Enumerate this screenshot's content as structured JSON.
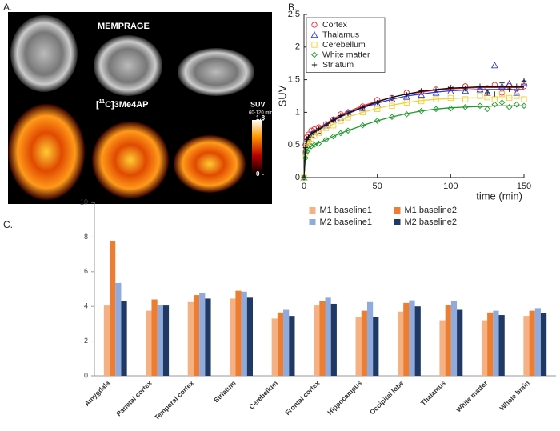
{
  "panel_labels": [
    "A.",
    "B.",
    "C."
  ],
  "image_panel": {
    "mri_label": "MEMPRAGE",
    "pet_label": [
      "[",
      "11",
      "C]3Me4AP"
    ],
    "colorbar": {
      "label": "SUV",
      "sublabel": "60-120 min",
      "lim": [
        0,
        1.8
      ],
      "ticks": [
        0,
        1.8
      ]
    }
  },
  "chart_data": [
    {
      "type": "scatter",
      "xlabel": "time (min)",
      "ylabel": "SUV",
      "x": [
        0,
        1,
        2,
        3,
        5,
        7,
        10,
        15,
        20,
        25,
        30,
        40,
        50,
        60,
        70,
        80,
        90,
        100,
        110,
        120,
        125,
        130,
        135,
        140,
        145,
        150
      ],
      "xlim": [
        0,
        150
      ],
      "xticks": [
        0,
        50,
        100,
        150
      ],
      "ylim": [
        0,
        2.5
      ],
      "yticks": [
        0,
        0.5,
        1,
        1.5,
        2,
        2.5
      ],
      "legend": "upper left",
      "series": [
        {
          "name": "Cortex",
          "color": "#e8272c",
          "marker": "circle",
          "values": [
            0,
            0.5,
            0.62,
            0.66,
            0.72,
            0.74,
            0.77,
            0.82,
            0.89,
            0.97,
            1.0,
            1.09,
            1.19,
            1.22,
            1.3,
            1.31,
            1.35,
            1.37,
            1.4,
            1.35,
            1.37,
            1.42,
            1.3,
            1.4,
            1.36,
            1.4
          ],
          "fit": [
            0,
            0.45,
            0.58,
            0.63,
            0.68,
            0.72,
            0.76,
            0.83,
            0.9,
            0.96,
            1.01,
            1.1,
            1.17,
            1.23,
            1.28,
            1.31,
            1.34,
            1.36,
            1.37,
            1.38,
            1.38,
            1.38,
            1.38,
            1.38,
            1.38,
            1.38
          ]
        },
        {
          "name": "Thalamus",
          "color": "#2a3bd6",
          "marker": "triangle",
          "values": [
            0,
            0.42,
            0.56,
            0.6,
            0.66,
            0.7,
            0.72,
            0.8,
            0.88,
            0.92,
            1.0,
            1.06,
            1.13,
            1.2,
            1.24,
            1.27,
            1.3,
            1.32,
            1.33,
            1.35,
            1.3,
            1.72,
            1.4,
            1.44,
            1.3,
            1.46
          ],
          "fit": [
            0,
            0.42,
            0.55,
            0.6,
            0.65,
            0.69,
            0.73,
            0.8,
            0.87,
            0.93,
            0.98,
            1.07,
            1.14,
            1.2,
            1.25,
            1.28,
            1.31,
            1.33,
            1.34,
            1.35,
            1.35,
            1.35,
            1.35,
            1.35,
            1.35,
            1.35
          ]
        },
        {
          "name": "Cerebellum",
          "color": "#f2d03b",
          "marker": "square",
          "values": [
            0,
            0.38,
            0.5,
            0.56,
            0.6,
            0.64,
            0.68,
            0.76,
            0.8,
            0.87,
            0.92,
            1.0,
            1.05,
            1.1,
            1.15,
            1.17,
            1.2,
            1.22,
            1.2,
            1.25,
            1.23,
            1.2,
            1.28,
            1.22,
            1.25,
            1.2
          ],
          "fit": [
            0,
            0.4,
            0.52,
            0.57,
            0.62,
            0.65,
            0.69,
            0.76,
            0.82,
            0.88,
            0.93,
            1.0,
            1.06,
            1.11,
            1.15,
            1.18,
            1.2,
            1.21,
            1.22,
            1.22,
            1.22,
            1.22,
            1.22,
            1.22,
            1.22,
            1.22
          ]
        },
        {
          "name": "White matter",
          "color": "#1c9a2a",
          "marker": "diamond",
          "values": [
            0,
            0.3,
            0.4,
            0.45,
            0.48,
            0.5,
            0.52,
            0.58,
            0.63,
            0.68,
            0.72,
            0.8,
            0.87,
            0.93,
            0.97,
            1.02,
            1.05,
            1.06,
            1.08,
            1.1,
            1.05,
            1.12,
            1.15,
            1.08,
            1.12,
            1.1
          ],
          "fit": [
            0,
            0.32,
            0.42,
            0.45,
            0.48,
            0.5,
            0.53,
            0.58,
            0.63,
            0.68,
            0.72,
            0.8,
            0.87,
            0.93,
            0.98,
            1.02,
            1.05,
            1.07,
            1.08,
            1.09,
            1.09,
            1.1,
            1.1,
            1.1,
            1.1,
            1.1
          ]
        },
        {
          "name": "Striatum",
          "color": "#111111",
          "marker": "plus",
          "values": [
            0,
            0.46,
            0.58,
            0.62,
            0.67,
            0.7,
            0.75,
            0.8,
            0.88,
            0.95,
            0.98,
            1.07,
            1.15,
            1.22,
            1.27,
            1.33,
            1.34,
            1.38,
            1.36,
            1.4,
            1.3,
            1.28,
            1.45,
            1.35,
            1.4,
            1.48
          ],
          "fit": [
            0,
            0.45,
            0.58,
            0.63,
            0.67,
            0.7,
            0.74,
            0.81,
            0.88,
            0.94,
            0.99,
            1.08,
            1.16,
            1.23,
            1.28,
            1.32,
            1.35,
            1.37,
            1.38,
            1.39,
            1.39,
            1.39,
            1.39,
            1.39,
            1.39,
            1.39
          ]
        }
      ]
    },
    {
      "type": "bar",
      "categories": [
        "Amygdala",
        "Parietal cortex",
        "Temporal cortex",
        "Striatum",
        "Cerebellum",
        "Frontal cortex",
        "Hippocampus",
        "Occipital lobe",
        "Thalamus",
        "White matter",
        "Whole brain"
      ],
      "ylim": [
        0,
        10
      ],
      "yticks": [
        0,
        2,
        4,
        6,
        8,
        10
      ],
      "legend": "upper center",
      "series": [
        {
          "name": "M1 baseline1",
          "color": "#f4b183",
          "values": [
            4.05,
            3.75,
            4.25,
            4.45,
            3.3,
            4.05,
            3.4,
            3.7,
            3.2,
            3.2,
            3.45
          ]
        },
        {
          "name": "M1 baseline2",
          "color": "#ed7d31",
          "values": [
            7.75,
            4.4,
            4.65,
            4.9,
            3.65,
            4.3,
            3.75,
            4.2,
            4.1,
            3.65,
            3.75
          ]
        },
        {
          "name": "M2 baseline1",
          "color": "#8faadc",
          "values": [
            5.35,
            4.1,
            4.75,
            4.85,
            3.8,
            4.5,
            4.25,
            4.35,
            4.3,
            3.75,
            3.9
          ]
        },
        {
          "name": "M2 baseline2",
          "color": "#203864",
          "values": [
            4.3,
            4.05,
            4.45,
            4.5,
            3.45,
            4.15,
            3.4,
            4.0,
            3.8,
            3.5,
            3.6
          ]
        }
      ]
    }
  ]
}
